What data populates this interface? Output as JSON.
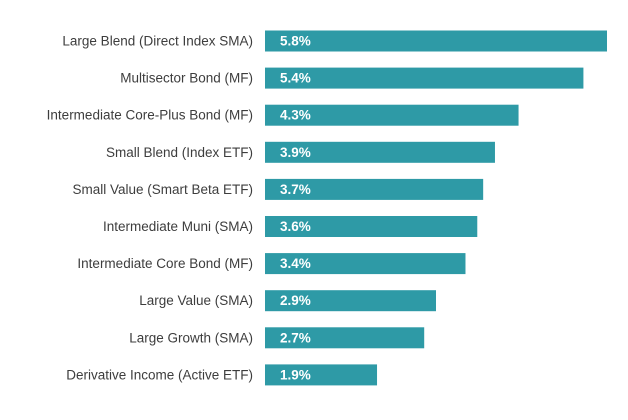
{
  "chart_data": {
    "type": "bar",
    "orientation": "horizontal",
    "categories": [
      "Large Blend (Direct Index SMA)",
      "Multisector Bond (MF)",
      "Intermediate Core-Plus Bond (MF)",
      "Small Blend (Index ETF)",
      "Small Value (Smart Beta ETF)",
      "Intermediate Muni (SMA)",
      "Intermediate Core Bond (MF)",
      "Large Value (SMA)",
      "Large Growth (SMA)",
      "Derivative Income (Active ETF)"
    ],
    "values": [
      5.8,
      5.4,
      4.3,
      3.9,
      3.7,
      3.6,
      3.4,
      2.9,
      2.7,
      1.9
    ],
    "value_labels": [
      "5.8%",
      "5.4%",
      "4.3%",
      "3.9%",
      "3.7%",
      "3.6%",
      "3.4%",
      "2.9%",
      "2.7%",
      "1.9%"
    ],
    "xlim": [
      0,
      5.8
    ],
    "grid": false,
    "legend": "none",
    "bar_color": "#2e9aa6"
  }
}
